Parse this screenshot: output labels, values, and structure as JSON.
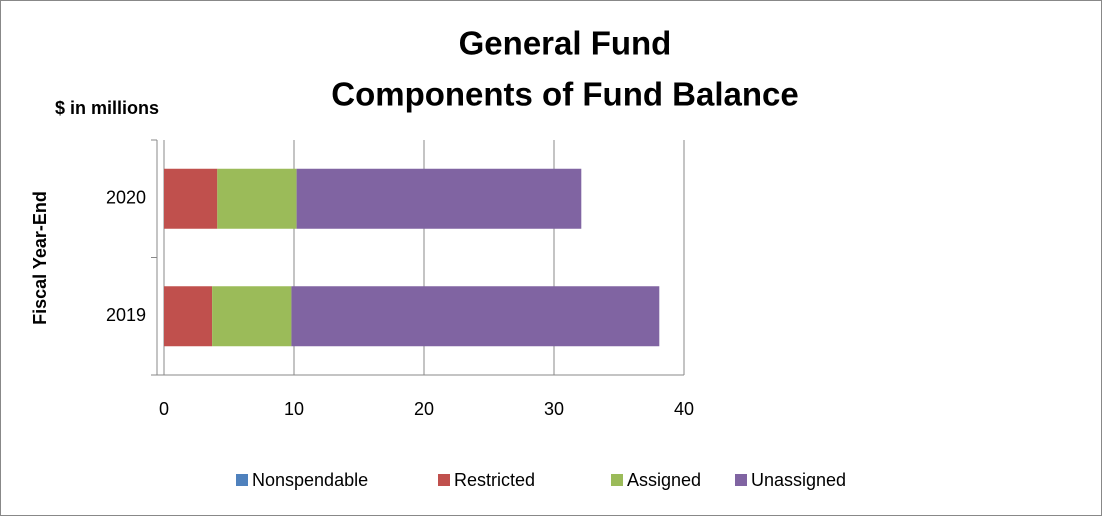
{
  "chart_data": {
    "type": "stacked_bar_horizontal",
    "title": "General Fund",
    "subtitle": "Components of Fund Balance",
    "unit_label": "$ in millions",
    "y_axis_label": "Fiscal Year-End",
    "categories": [
      "2019",
      "2020"
    ],
    "series": [
      {
        "name": "Nonspendable",
        "color": "#4f81bd",
        "values": [
          0,
          0
        ]
      },
      {
        "name": "Restricted",
        "color": "#c0504d",
        "values": [
          3.7,
          4.1
        ]
      },
      {
        "name": "Assigned",
        "color": "#9bbb59",
        "values": [
          6.1,
          6.1
        ]
      },
      {
        "name": "Unassigned",
        "color": "#8064a2",
        "values": [
          28.3,
          21.9
        ]
      }
    ],
    "xlim": [
      0,
      40
    ],
    "xticks": [
      0,
      10,
      20,
      30,
      40
    ],
    "grid": true,
    "legend": "bottom"
  }
}
